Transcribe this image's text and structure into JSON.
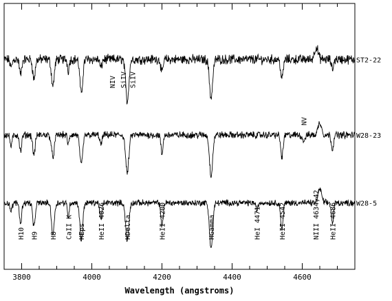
{
  "chart_data": {
    "type": "line",
    "title": "",
    "xlabel": "Wavelength (angstroms)",
    "ylabel": "",
    "xlim": [
      3750,
      4750
    ],
    "x_ticks": [
      3800,
      4000,
      4200,
      4400,
      4600
    ],
    "x_tick_labels": [
      "3800",
      "4000",
      "4200",
      "4400",
      "4600"
    ],
    "ylim": [
      0,
      3.8
    ],
    "grid": false,
    "legend": "none",
    "line_color": "#000000",
    "series": [
      {
        "name": "ST2-22",
        "continuum": 3.0,
        "noise": 0.055,
        "features": [
          {
            "x": 3770,
            "depth": 0.12,
            "width": 3
          },
          {
            "x": 3797,
            "depth": 0.22,
            "width": 3
          },
          {
            "x": 3835,
            "depth": 0.28,
            "width": 3.5
          },
          {
            "x": 3889,
            "depth": 0.38,
            "width": 4
          },
          {
            "x": 3933,
            "depth": 0.16,
            "width": 2.5
          },
          {
            "x": 3970,
            "depth": 0.5,
            "width": 4
          },
          {
            "x": 4026,
            "depth": 0.12,
            "width": 3
          },
          {
            "x": 4101,
            "depth": 0.6,
            "width": 4.5
          },
          {
            "x": 4200,
            "depth": 0.2,
            "width": 3
          },
          {
            "x": 4340,
            "depth": 0.55,
            "width": 4.5
          },
          {
            "x": 4542,
            "depth": 0.28,
            "width": 3.5
          },
          {
            "x": 4640,
            "depth": -0.18,
            "width": 5
          },
          {
            "x": 4686,
            "depth": 0.14,
            "width": 3
          }
        ]
      },
      {
        "name": "W28-23",
        "continuum": 1.92,
        "noise": 0.04,
        "features": [
          {
            "x": 3770,
            "depth": 0.16,
            "width": 3
          },
          {
            "x": 3797,
            "depth": 0.24,
            "width": 3
          },
          {
            "x": 3835,
            "depth": 0.28,
            "width": 3.5
          },
          {
            "x": 3889,
            "depth": 0.32,
            "width": 4
          },
          {
            "x": 3933,
            "depth": 0.14,
            "width": 2.5
          },
          {
            "x": 3970,
            "depth": 0.44,
            "width": 4
          },
          {
            "x": 4026,
            "depth": 0.14,
            "width": 3
          },
          {
            "x": 4101,
            "depth": 0.55,
            "width": 4.5
          },
          {
            "x": 4200,
            "depth": 0.28,
            "width": 3
          },
          {
            "x": 4340,
            "depth": 0.58,
            "width": 4.5
          },
          {
            "x": 4542,
            "depth": 0.32,
            "width": 3.5
          },
          {
            "x": 4604,
            "depth": 0.08,
            "width": 4
          },
          {
            "x": 4650,
            "depth": -0.18,
            "width": 5
          },
          {
            "x": 4686,
            "depth": 0.2,
            "width": 3
          }
        ]
      },
      {
        "name": "W28-5",
        "continuum": 0.95,
        "noise": 0.035,
        "features": [
          {
            "x": 3770,
            "depth": 0.12,
            "width": 3
          },
          {
            "x": 3797,
            "depth": 0.3,
            "width": 3
          },
          {
            "x": 3835,
            "depth": 0.35,
            "width": 3.5
          },
          {
            "x": 3889,
            "depth": 0.45,
            "width": 4
          },
          {
            "x": 3933,
            "depth": 0.2,
            "width": 2.5
          },
          {
            "x": 3970,
            "depth": 0.55,
            "width": 4
          },
          {
            "x": 4026,
            "depth": 0.25,
            "width": 3
          },
          {
            "x": 4101,
            "depth": 0.55,
            "width": 4.5
          },
          {
            "x": 4200,
            "depth": 0.35,
            "width": 3
          },
          {
            "x": 4340,
            "depth": 0.65,
            "width": 4.5
          },
          {
            "x": 4471,
            "depth": 0.1,
            "width": 3
          },
          {
            "x": 4542,
            "depth": 0.38,
            "width": 3.5
          },
          {
            "x": 4650,
            "depth": -0.2,
            "width": 5
          },
          {
            "x": 4686,
            "depth": 0.3,
            "width": 3
          }
        ]
      }
    ],
    "line_labels": [
      {
        "text": "H10",
        "x": 3797
      },
      {
        "text": "H9",
        "x": 3835
      },
      {
        "text": "H8",
        "x": 3889
      },
      {
        "text": "CaII K",
        "x": 3933
      },
      {
        "text": "HEps",
        "x": 3970
      },
      {
        "text": "HeII 4026",
        "x": 4026
      },
      {
        "text": "HDelta",
        "x": 4101
      },
      {
        "text": "HeII 4200",
        "x": 4200
      },
      {
        "text": "HGamma",
        "x": 4340
      },
      {
        "text": "HeI 4471",
        "x": 4471
      },
      {
        "text": "HeII 4542",
        "x": 4542
      },
      {
        "text": "NIII 4634,42",
        "x": 4638
      },
      {
        "text": "HeII 4686",
        "x": 4686
      }
    ],
    "annotations": [
      {
        "text": "NIV",
        "x": 4058
      },
      {
        "text": "SiIV",
        "x": 4089
      },
      {
        "text": "SiIV",
        "x": 4116
      },
      {
        "text": "NV",
        "x": 4604
      }
    ]
  }
}
